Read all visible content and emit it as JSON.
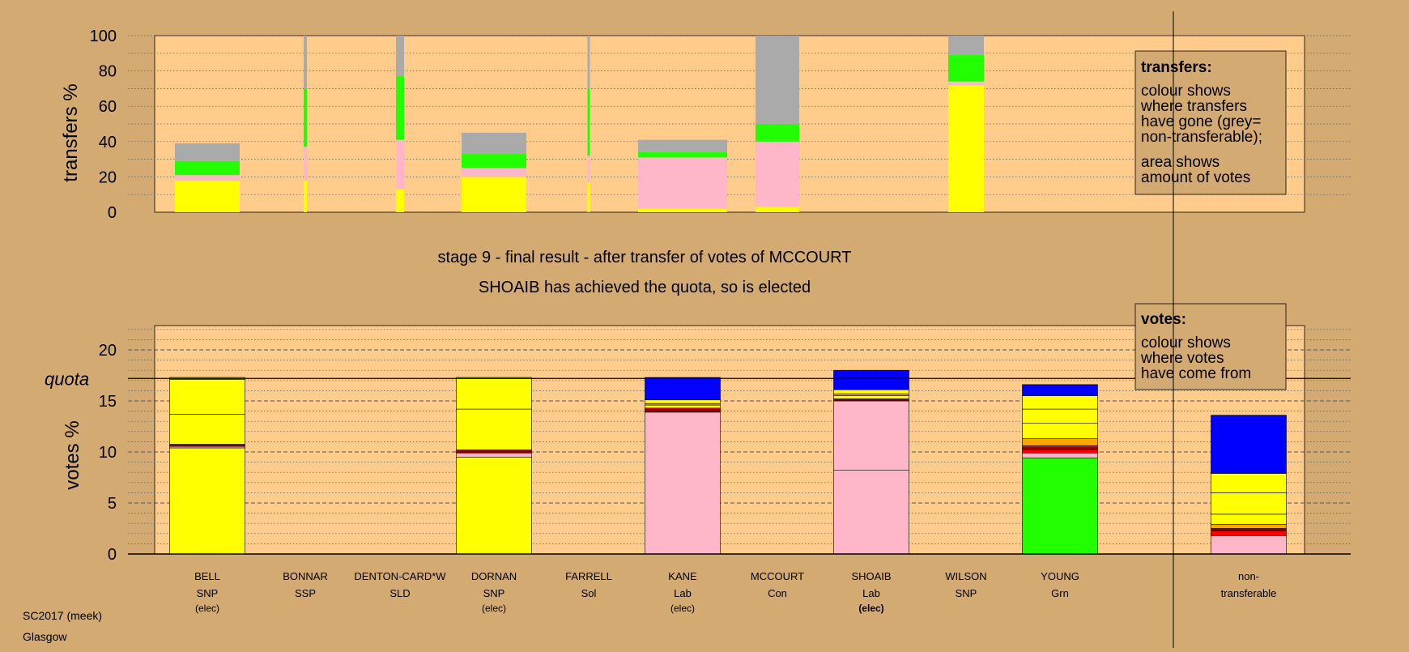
{
  "chart_data": [
    {
      "type": "bar",
      "stacked": true,
      "ylabel": "transfers %",
      "ylim": [
        0,
        100
      ],
      "ticks": [
        0,
        20,
        40,
        60,
        80,
        100
      ],
      "grid": "dotted",
      "categories": [
        "BELL",
        "BONNAR",
        "DENTON-CARD*W",
        "DORNAN",
        "FARRELL",
        "KANE",
        "MCCOURT",
        "SHOAIB",
        "WILSON",
        "YOUNG"
      ],
      "columns": [
        {
          "candidate": "BELL",
          "width_share": 40,
          "segments": [
            {
              "color": "#ffff00",
              "from": 0,
              "to": 18
            },
            {
              "color": "#ffb6c8",
              "from": 18,
              "to": 21
            },
            {
              "color": "#22ff00",
              "from": 21,
              "to": 29
            },
            {
              "color": "#aaaaaa",
              "from": 29,
              "to": 39
            }
          ]
        },
        {
          "candidate": "BONNAR",
          "width_share": 2,
          "segments": [
            {
              "color": "#ffff00",
              "from": 0,
              "to": 18
            },
            {
              "color": "#ffb6c8",
              "from": 18,
              "to": 37
            },
            {
              "color": "#22ff00",
              "from": 37,
              "to": 70
            },
            {
              "color": "#aaaaaa",
              "from": 70,
              "to": 100
            }
          ]
        },
        {
          "candidate": "DENTON-CARD*W",
          "width_share": 5,
          "segments": [
            {
              "color": "#ffff00",
              "from": 0,
              "to": 13
            },
            {
              "color": "#ffb6c8",
              "from": 13,
              "to": 41
            },
            {
              "color": "#22ff00",
              "from": 41,
              "to": 77
            },
            {
              "color": "#aaaaaa",
              "from": 77,
              "to": 100
            }
          ]
        },
        {
          "candidate": "DORNAN",
          "width_share": 40,
          "segments": [
            {
              "color": "#ffff00",
              "from": 0,
              "to": 20
            },
            {
              "color": "#ffb6c8",
              "from": 20,
              "to": 25
            },
            {
              "color": "#22ff00",
              "from": 25,
              "to": 33
            },
            {
              "color": "#aaaaaa",
              "from": 33,
              "to": 45
            }
          ]
        },
        {
          "candidate": "FARRELL",
          "width_share": 1.5,
          "segments": [
            {
              "color": "#ffff00",
              "from": 0,
              "to": 17
            },
            {
              "color": "#ffb6c8",
              "from": 17,
              "to": 32
            },
            {
              "color": "#22ff00",
              "from": 32,
              "to": 70
            },
            {
              "color": "#aaaaaa",
              "from": 70,
              "to": 100
            }
          ]
        },
        {
          "candidate": "KANE",
          "width_share": 55,
          "segments": [
            {
              "color": "#ffff00",
              "from": 0,
              "to": 2
            },
            {
              "color": "#ffb6c8",
              "from": 2,
              "to": 31
            },
            {
              "color": "#22ff00",
              "from": 31,
              "to": 34
            },
            {
              "color": "#aaaaaa",
              "from": 34,
              "to": 41
            }
          ]
        },
        {
          "candidate": "MCCOURT",
          "width_share": 27,
          "segments": [
            {
              "color": "#ffff00",
              "from": 0,
              "to": 3
            },
            {
              "color": "#ffb6c8",
              "from": 3,
              "to": 40
            },
            {
              "color": "#22ff00",
              "from": 40,
              "to": 50
            },
            {
              "color": "#aaaaaa",
              "from": 50,
              "to": 100
            }
          ]
        },
        {
          "candidate": "SHOAIB",
          "width_share": 0,
          "segments": []
        },
        {
          "candidate": "WILSON",
          "width_share": 22,
          "segments": [
            {
              "color": "#ffff00",
              "from": 0,
              "to": 72
            },
            {
              "color": "#ffb6c8",
              "from": 72,
              "to": 74
            },
            {
              "color": "#22ff00",
              "from": 74,
              "to": 89
            },
            {
              "color": "#aaaaaa",
              "from": 89,
              "to": 100
            }
          ]
        },
        {
          "candidate": "YOUNG",
          "width_share": 0,
          "segments": []
        }
      ]
    },
    {
      "type": "bar",
      "stacked": true,
      "ylabel": "votes %",
      "ylim": [
        0,
        22.5
      ],
      "ticks": [
        0,
        5,
        10,
        15,
        20
      ],
      "quota": 17.2,
      "quota_label": "quota",
      "grid": "dotted minor every 1, dashed major every 5",
      "categories": [
        "BELL",
        "BONNAR",
        "DENTON-CARD*W",
        "DORNAN",
        "FARRELL",
        "KANE",
        "MCCOURT",
        "SHOAIB",
        "WILSON",
        "YOUNG",
        "non-transferable"
      ],
      "columns": [
        {
          "candidate": "BELL",
          "segments": [
            {
              "color": "#ffff00",
              "from": 0,
              "to": 10.4
            },
            {
              "color": "#ffb6c8",
              "from": 10.4,
              "to": 10.55
            },
            {
              "color": "#8b0000",
              "from": 10.55,
              "to": 10.75
            },
            {
              "color": "#ffff00",
              "from": 10.75,
              "to": 13.7
            },
            {
              "color": "#ffff00",
              "from": 13.7,
              "to": 17.1
            },
            {
              "color": "#ffff00",
              "from": 17.1,
              "to": 17.3
            }
          ]
        },
        {
          "candidate": "BONNAR",
          "segments": []
        },
        {
          "candidate": "DENTON-CARD*W",
          "segments": []
        },
        {
          "candidate": "DORNAN",
          "segments": [
            {
              "color": "#ffff00",
              "from": 0,
              "to": 9.5
            },
            {
              "color": "#ffb6c8",
              "from": 9.5,
              "to": 9.9
            },
            {
              "color": "#8b0000",
              "from": 9.9,
              "to": 10.2
            },
            {
              "color": "#ffff00",
              "from": 10.2,
              "to": 14.2
            },
            {
              "color": "#ffff00",
              "from": 14.2,
              "to": 17.3
            }
          ]
        },
        {
          "candidate": "FARRELL",
          "segments": []
        },
        {
          "candidate": "KANE",
          "segments": [
            {
              "color": "#ffb6c8",
              "from": 0,
              "to": 13.9
            },
            {
              "color": "#8b0000",
              "from": 13.9,
              "to": 14.15
            },
            {
              "color": "#ff0000",
              "from": 14.15,
              "to": 14.3
            },
            {
              "color": "#ffff00",
              "from": 14.3,
              "to": 14.6
            },
            {
              "color": "#ffa500",
              "from": 14.6,
              "to": 14.75
            },
            {
              "color": "#ffff00",
              "from": 14.75,
              "to": 15.1
            },
            {
              "color": "#0000ff",
              "from": 15.1,
              "to": 17.3
            }
          ]
        },
        {
          "candidate": "MCCOURT",
          "segments": []
        },
        {
          "candidate": "SHOAIB",
          "segments": [
            {
              "color": "#ffb6c8",
              "from": 0,
              "to": 8.2
            },
            {
              "color": "#ffb6c8",
              "from": 8.2,
              "to": 15
            },
            {
              "color": "#8b0000",
              "from": 15,
              "to": 15.2
            },
            {
              "color": "#ffff00",
              "from": 15.2,
              "to": 15.5
            },
            {
              "color": "#ffa500",
              "from": 15.5,
              "to": 15.7
            },
            {
              "color": "#ffff00",
              "from": 15.7,
              "to": 16.1
            },
            {
              "color": "#0000ff",
              "from": 16.1,
              "to": 18
            }
          ]
        },
        {
          "candidate": "WILSON",
          "segments": []
        },
        {
          "candidate": "YOUNG",
          "segments": [
            {
              "color": "#22ff00",
              "from": 0,
              "to": 9.4
            },
            {
              "color": "#ffb6c8",
              "from": 9.4,
              "to": 9.9
            },
            {
              "color": "#ff0000",
              "from": 9.9,
              "to": 10.2
            },
            {
              "color": "#8b0000",
              "from": 10.2,
              "to": 10.4
            },
            {
              "color": "#ff0000",
              "from": 10.4,
              "to": 10.6
            },
            {
              "color": "#ffa500",
              "from": 10.6,
              "to": 11.3
            },
            {
              "color": "#ffff00",
              "from": 11.3,
              "to": 12.8
            },
            {
              "color": "#ffff00",
              "from": 12.8,
              "to": 14.2
            },
            {
              "color": "#ffff00",
              "from": 14.2,
              "to": 15.5
            },
            {
              "color": "#0000ff",
              "from": 15.5,
              "to": 16.6
            }
          ]
        },
        {
          "candidate": "non-transferable",
          "segments": [
            {
              "color": "#ffb6c8",
              "from": 0,
              "to": 1.8
            },
            {
              "color": "#ff0000",
              "from": 1.8,
              "to": 2.3
            },
            {
              "color": "#8b0000",
              "from": 2.3,
              "to": 2.5
            },
            {
              "color": "#ffa500",
              "from": 2.5,
              "to": 2.9
            },
            {
              "color": "#ffff00",
              "from": 2.9,
              "to": 3.9
            },
            {
              "color": "#ffff00",
              "from": 3.9,
              "to": 6
            },
            {
              "color": "#ffff00",
              "from": 6,
              "to": 7.9
            },
            {
              "color": "#0000ff",
              "from": 7.9,
              "to": 13.6
            }
          ]
        }
      ]
    }
  ],
  "stage_text": "stage 9 - final result - after transfer of votes of MCCOURT",
  "elected_text": "SHOAIB has achieved the quota, so is elected",
  "transfers_legend": {
    "title": "transfers:",
    "para1": [
      "colour shows",
      "where transfers",
      "have gone (grey=",
      "non-transferable);"
    ],
    "para2": [
      "area shows",
      "amount of votes"
    ]
  },
  "votes_legend": {
    "title": "votes:",
    "para1": [
      "colour shows",
      "where votes",
      "have come from"
    ]
  },
  "candidates": [
    {
      "name": "BELL",
      "party": "SNP",
      "status": "(elec)"
    },
    {
      "name": "BONNAR",
      "party": "SSP",
      "status": ""
    },
    {
      "name": "DENTON-CARD*W",
      "party": "SLD",
      "status": ""
    },
    {
      "name": "DORNAN",
      "party": "SNP",
      "status": "(elec)"
    },
    {
      "name": "FARRELL",
      "party": "Sol",
      "status": ""
    },
    {
      "name": "KANE",
      "party": "Lab",
      "status": "(elec)"
    },
    {
      "name": "MCCOURT",
      "party": "Con",
      "status": ""
    },
    {
      "name": "SHOAIB",
      "party": "Lab",
      "status": "(elec)",
      "status_bold": true
    },
    {
      "name": "WILSON",
      "party": "SNP",
      "status": ""
    },
    {
      "name": "YOUNG",
      "party": "Grn",
      "status": ""
    }
  ],
  "nontransferable_label": [
    "non-",
    "transferable"
  ],
  "footer": {
    "line1": "SC2017 (meek)",
    "line2": "Glasgow"
  },
  "colors": {
    "background": "#d4aa73",
    "plot": "#ffcc8c"
  }
}
